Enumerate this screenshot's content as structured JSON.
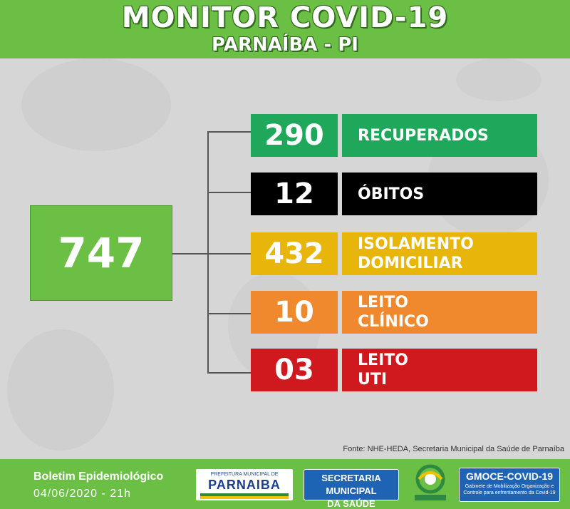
{
  "header": {
    "title": "MONITOR COVID-19",
    "subtitle": "PARNAÍBA - PI"
  },
  "total": "747",
  "rows": [
    {
      "value": "290",
      "label_line1": "RECUPERADOS",
      "label_line2": "",
      "color": "#1fa85b"
    },
    {
      "value": "12",
      "label_line1": "ÓBITOS",
      "label_line2": "",
      "color": "#000000"
    },
    {
      "value": "432",
      "label_line1": "ISOLAMENTO",
      "label_line2": "DOMICILIAR",
      "color": "#e8b60b"
    },
    {
      "value": "10",
      "label_line1": "LEITO",
      "label_line2": "CLÍNICO",
      "color": "#f0882d"
    },
    {
      "value": "03",
      "label_line1": "LEITO",
      "label_line2": "UTI",
      "color": "#d0191f"
    }
  ],
  "source": "Fonte: NHE-HEDA, Secretaria Municipal da Saúde de Parnaíba",
  "footer": {
    "bulletin_title": "Boletim Epidemiológico",
    "bulletin_date": "04/06/2020 - 21h",
    "logo_prefeitura_small": "PREFEITURA MUNICIPAL DE",
    "logo_prefeitura_big": "PARNAIBA",
    "logo_secretaria_line1": "SECRETARIA MUNICIPAL",
    "logo_secretaria_line2": "DA SAÚDE",
    "logo_gmoce_title": "GMOCE-COVID-19",
    "logo_gmoce_sub": "Gabinete de Mobilização Organização e Controle para enfrentamento da Covid-19"
  }
}
